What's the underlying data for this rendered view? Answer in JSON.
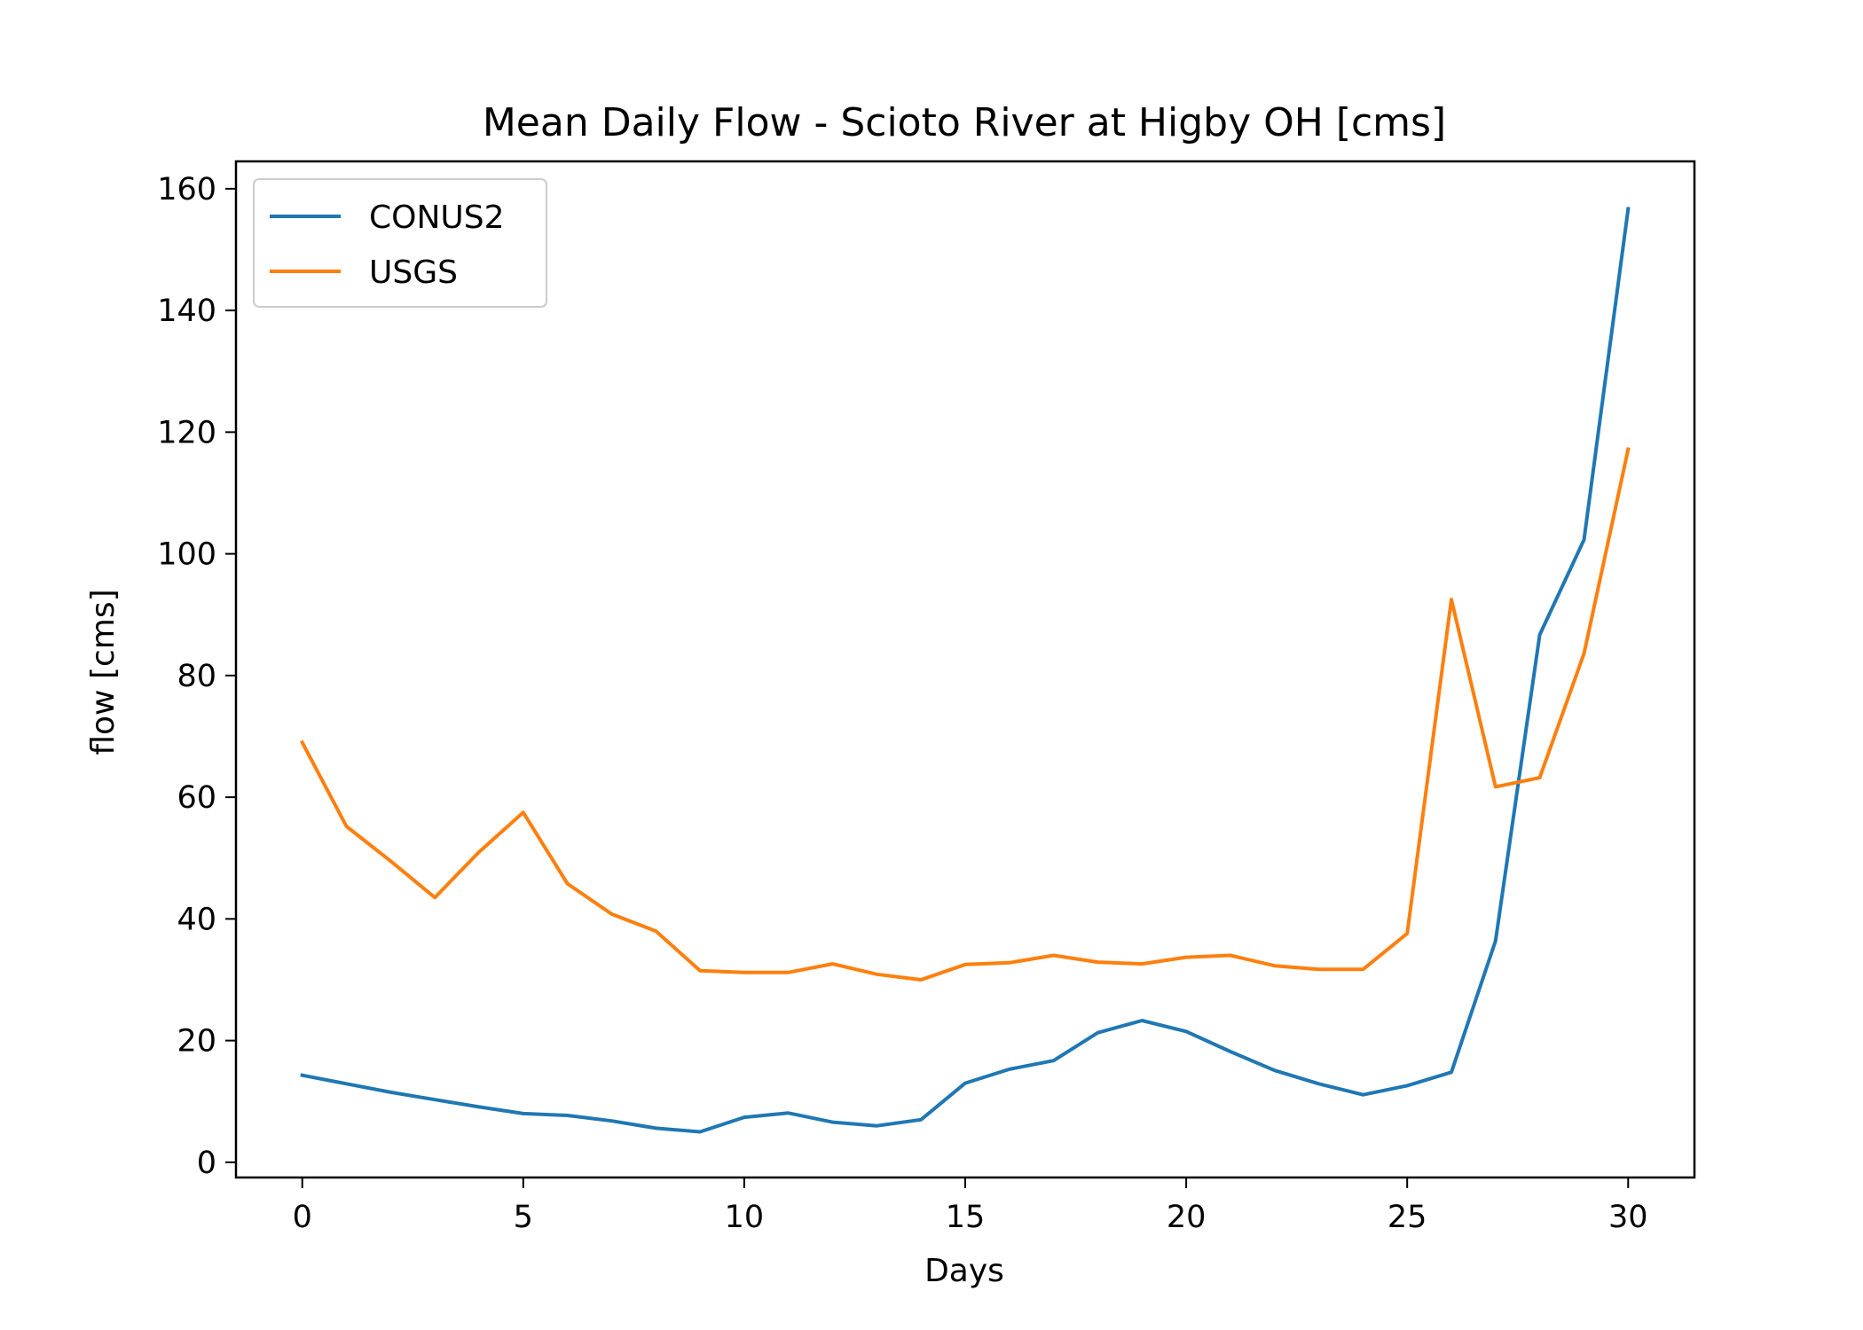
{
  "chart_data": {
    "type": "line",
    "title": "Mean Daily Flow - Scioto River at Higby OH [cms]",
    "xlabel": "Days",
    "ylabel": "flow [cms]",
    "xlim": [
      -1.5,
      31.5
    ],
    "ylim": [
      -2.5,
      164.5
    ],
    "xticks": [
      0,
      5,
      10,
      15,
      20,
      25,
      30
    ],
    "yticks": [
      0,
      20,
      40,
      60,
      80,
      100,
      120,
      140,
      160
    ],
    "grid": false,
    "legend_position": "upper left",
    "x": [
      0,
      1,
      2,
      3,
      4,
      5,
      6,
      7,
      8,
      9,
      10,
      11,
      12,
      13,
      14,
      15,
      16,
      17,
      18,
      19,
      20,
      21,
      22,
      23,
      24,
      25,
      26,
      27,
      28,
      29,
      30
    ],
    "series": [
      {
        "name": "CONUS2",
        "color": "#1f77b4",
        "values": [
          14.3,
          12.9,
          11.5,
          10.3,
          9.1,
          8.0,
          7.7,
          6.8,
          5.6,
          5.0,
          7.4,
          8.1,
          6.6,
          6.0,
          7.0,
          13.0,
          15.3,
          16.7,
          21.3,
          23.3,
          21.5,
          18.2,
          15.1,
          12.9,
          11.1,
          12.6,
          14.8,
          36.4,
          86.7,
          102.3,
          156.7
        ]
      },
      {
        "name": "USGS",
        "color": "#ff7f0e",
        "values": [
          69.0,
          55.2,
          49.5,
          43.5,
          51.0,
          57.5,
          45.8,
          40.8,
          38.0,
          31.5,
          31.2,
          31.2,
          32.6,
          30.9,
          30.0,
          32.5,
          32.8,
          34.0,
          32.9,
          32.6,
          33.7,
          34.0,
          32.3,
          31.7,
          31.7,
          37.6,
          92.5,
          61.7,
          63.2,
          83.6,
          117.2
        ]
      }
    ]
  }
}
